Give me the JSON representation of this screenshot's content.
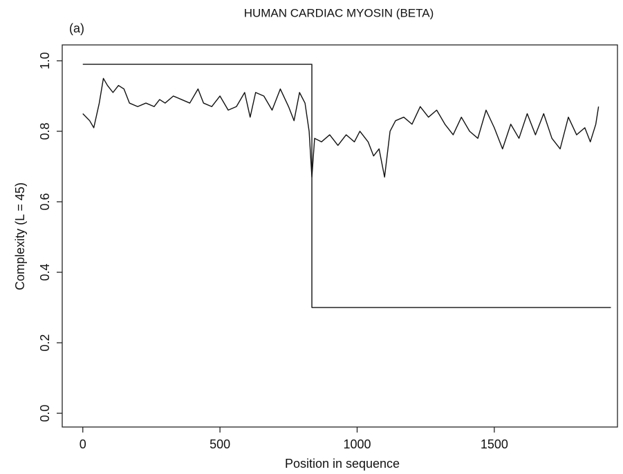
{
  "chart_data": {
    "type": "line",
    "panel_label": "(a)",
    "title": "HUMAN CARDIAC MYOSIN (BETA)",
    "x_label": "Position in sequence",
    "y_label": "Complexity (L = 45)",
    "xlim": [
      -75,
      1949
    ],
    "ylim": [
      -0.039,
      1.045
    ],
    "xticks": [
      0,
      500,
      1000,
      1500
    ],
    "yticks": [
      {
        "value": 0,
        "label": "0.0"
      },
      0.2,
      0.4,
      0.6,
      0.8,
      {
        "value": 1,
        "label": "1.0"
      }
    ],
    "grid": false,
    "series": [
      {
        "color": "#111111",
        "x": [
          0,
          25,
          40,
          60,
          75,
          90,
          110,
          130,
          150,
          170,
          200,
          230,
          260,
          280,
          300,
          330,
          360,
          390,
          420,
          440,
          470,
          500,
          530,
          560,
          590,
          610,
          630,
          660,
          690,
          720,
          750,
          770,
          790,
          810,
          825,
          835,
          845,
          870,
          900,
          930,
          960,
          990,
          1010,
          1040,
          1060,
          1080,
          1100,
          1120,
          1140,
          1170,
          1200,
          1230,
          1260,
          1290,
          1320,
          1350,
          1380,
          1410,
          1440,
          1470,
          1500,
          1530,
          1560,
          1590,
          1620,
          1650,
          1680,
          1710,
          1740,
          1770,
          1800,
          1830,
          1850,
          1870,
          1880
        ],
        "values": [
          0.85,
          0.83,
          0.81,
          0.88,
          0.95,
          0.93,
          0.91,
          0.93,
          0.92,
          0.88,
          0.87,
          0.88,
          0.87,
          0.89,
          0.88,
          0.9,
          0.89,
          0.88,
          0.92,
          0.88,
          0.87,
          0.9,
          0.86,
          0.87,
          0.91,
          0.84,
          0.91,
          0.9,
          0.86,
          0.92,
          0.87,
          0.83,
          0.91,
          0.88,
          0.8,
          0.67,
          0.78,
          0.77,
          0.79,
          0.76,
          0.79,
          0.77,
          0.8,
          0.77,
          0.73,
          0.75,
          0.67,
          0.8,
          0.83,
          0.84,
          0.82,
          0.87,
          0.84,
          0.86,
          0.82,
          0.79,
          0.84,
          0.8,
          0.78,
          0.86,
          0.81,
          0.75,
          0.82,
          0.78,
          0.85,
          0.79,
          0.85,
          0.78,
          0.75,
          0.84,
          0.79,
          0.81,
          0.77,
          0.82,
          0.87
        ]
      },
      {
        "color": "#111111",
        "x": [
          0,
          835,
          835,
          1925
        ],
        "values": [
          0.99,
          0.99,
          0.3,
          0.3
        ]
      }
    ]
  }
}
